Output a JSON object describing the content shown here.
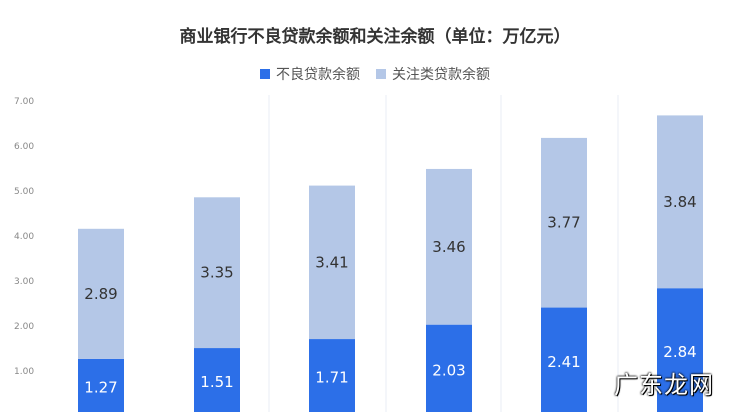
{
  "chart_data": {
    "type": "bar",
    "stacked": true,
    "title": "商业银行不良贷款余额和关注余额（单位：万亿元）",
    "categories": [
      "",
      "",
      "",
      "",
      "",
      ""
    ],
    "series": [
      {
        "name": "不良贷款余额",
        "color": "#2c6fe8",
        "label_color": "#ffffff",
        "values": [
          1.27,
          1.51,
          1.71,
          2.03,
          2.41,
          2.84
        ]
      },
      {
        "name": "关注类贷款余额",
        "color": "#b4c7e7",
        "label_color": "#333333",
        "values": [
          2.89,
          3.35,
          3.41,
          3.46,
          3.77,
          3.84
        ]
      }
    ],
    "y_ticks": [
      "7.00",
      "6.00",
      "5.00",
      "4.00",
      "3.00",
      "2.00",
      "1.00"
    ],
    "ylim": [
      0,
      7
    ],
    "legend_position": "top-center",
    "grid": false
  },
  "watermark": "广东龙网"
}
